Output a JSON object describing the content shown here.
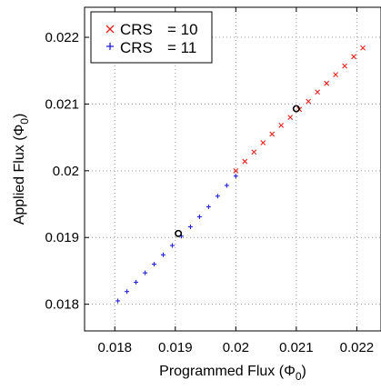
{
  "chart_data": {
    "type": "scatter",
    "xlabel": "Programmed Flux (Φ",
    "xlabel_sub": "0",
    "xlabel_end": ")",
    "ylabel": "Applied Flux (Φ",
    "ylabel_sub": "0",
    "ylabel_end": ")",
    "xlim": [
      0.0175,
      0.0224
    ],
    "ylim": [
      0.0176,
      0.02245
    ],
    "xticks": [
      "0.018",
      "0.019",
      "0.02",
      "0.021",
      "0.022"
    ],
    "yticks": [
      "0.018",
      "0.019",
      "0.02",
      "0.021",
      "0.022"
    ],
    "grid": true,
    "legend_position": "top-left",
    "series": [
      {
        "name": "CRS",
        "name_value": "= 10",
        "marker": "x",
        "color": "#e8231f",
        "x": [
          0.02,
          0.02015,
          0.0203,
          0.02045,
          0.0206,
          0.02075,
          0.0209,
          0.02105,
          0.0212,
          0.02135,
          0.0215,
          0.02165,
          0.0218,
          0.02195,
          0.0221
        ],
        "y": [
          0.02,
          0.02014,
          0.02028,
          0.02042,
          0.02055,
          0.02068,
          0.0208,
          0.02092,
          0.02104,
          0.02118,
          0.02131,
          0.02144,
          0.02157,
          0.02171,
          0.02184
        ]
      },
      {
        "name": "CRS",
        "name_value": "= 11",
        "marker": "+",
        "color": "#2222dd",
        "x": [
          0.01805,
          0.0182,
          0.01835,
          0.0185,
          0.01865,
          0.0188,
          0.01895,
          0.0191,
          0.01925,
          0.0194,
          0.01955,
          0.0197,
          0.01985,
          0.02
        ],
        "y": [
          0.01805,
          0.01819,
          0.01833,
          0.01847,
          0.0186,
          0.01874,
          0.01888,
          0.01902,
          0.01916,
          0.01931,
          0.01946,
          0.01962,
          0.01978,
          0.01992
        ]
      }
    ],
    "highlight_points": [
      {
        "x": 0.01905,
        "y": 0.01906
      },
      {
        "x": 0.021,
        "y": 0.02093
      }
    ]
  }
}
